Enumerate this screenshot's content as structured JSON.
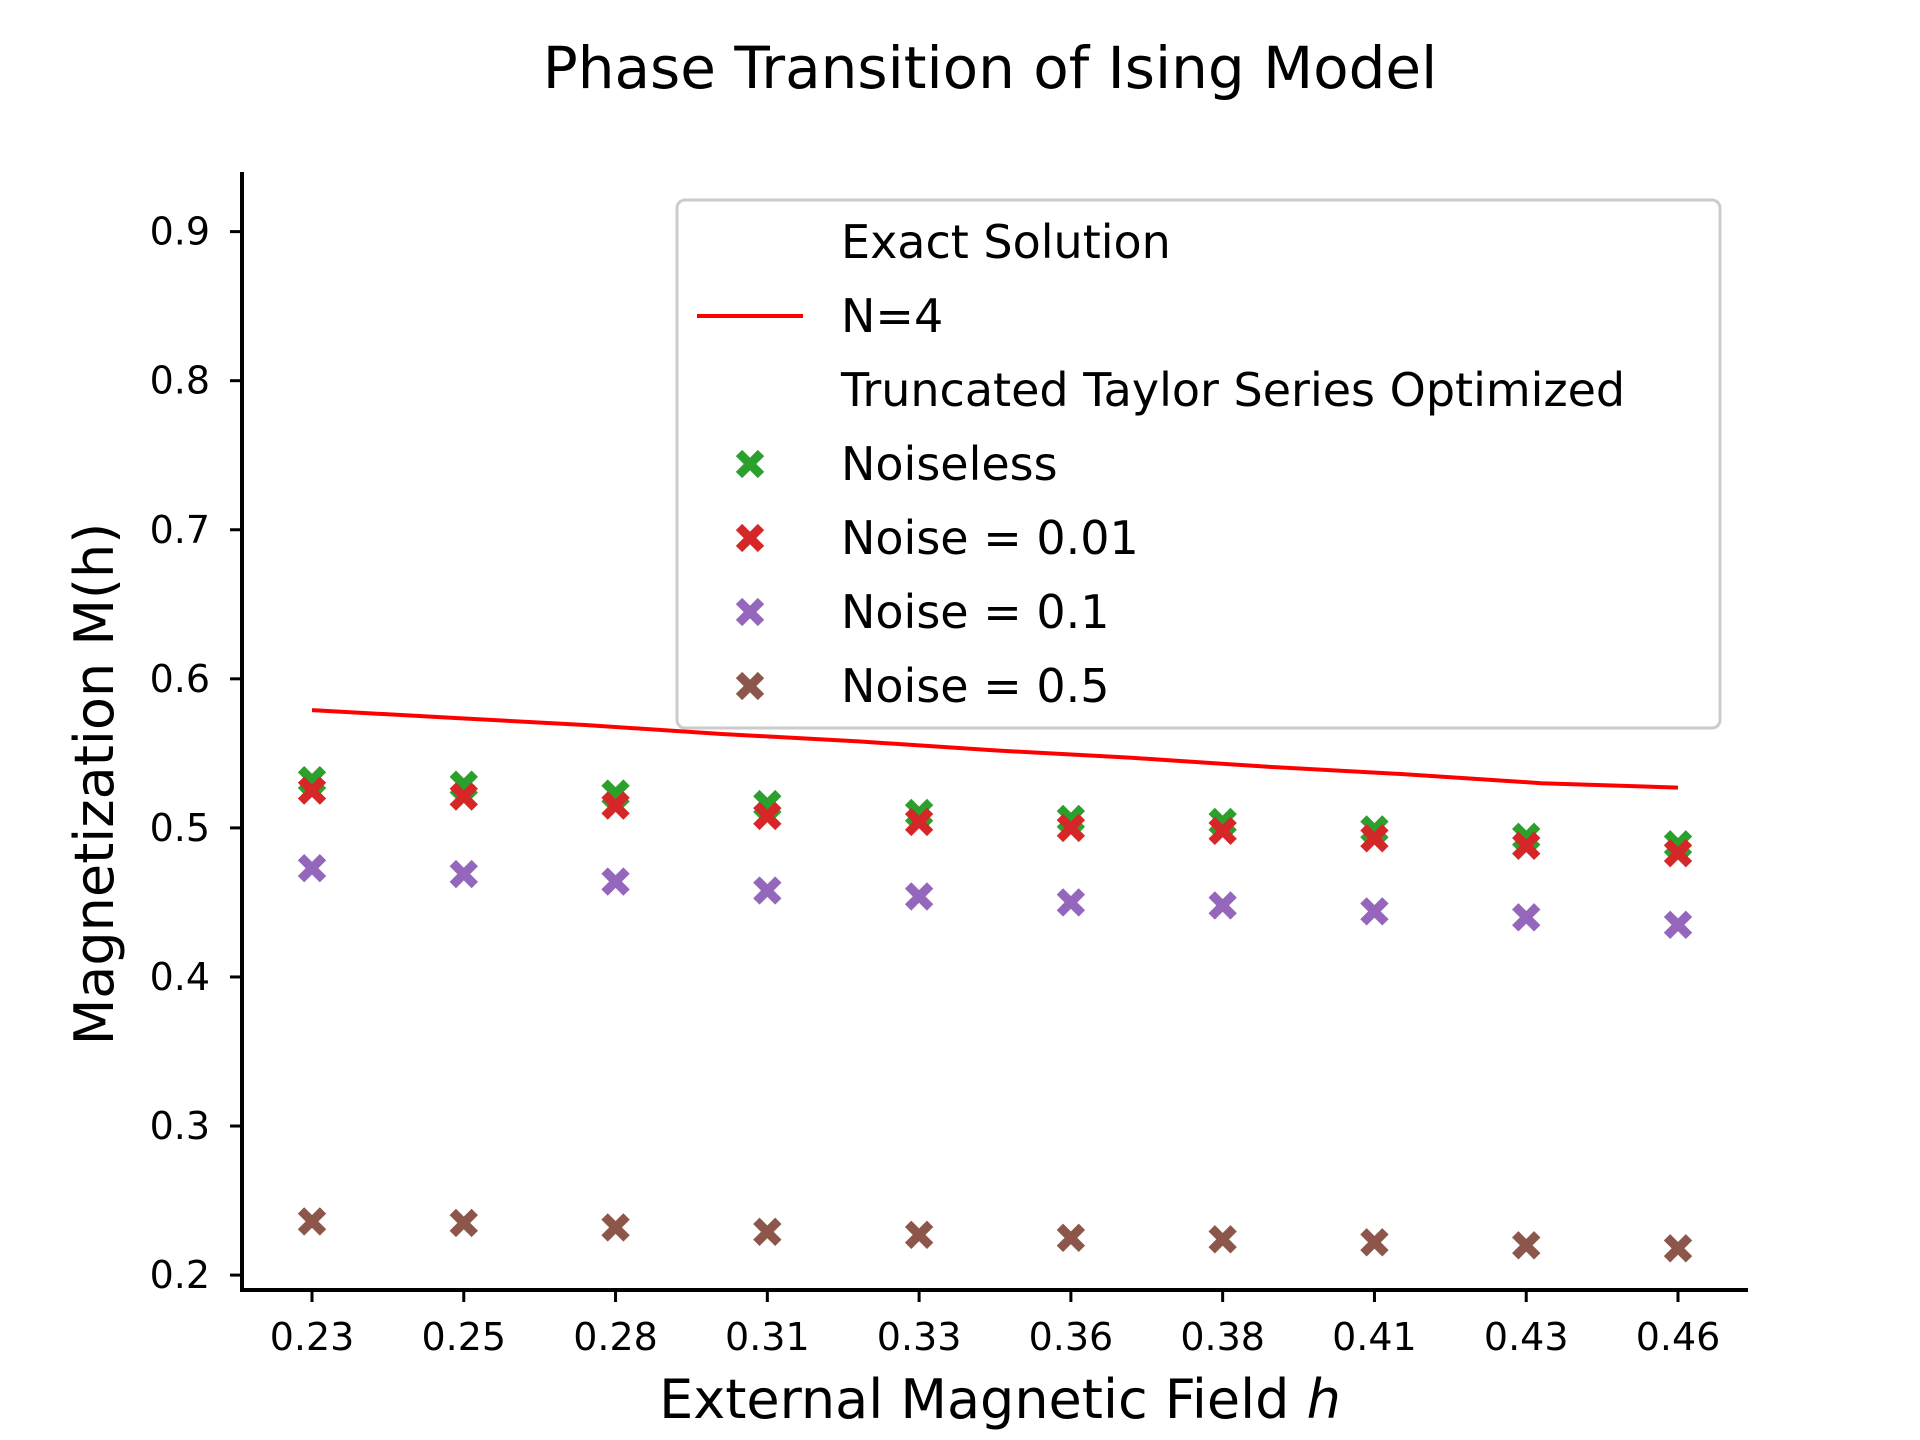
{
  "chart_data": {
    "type": "scatter",
    "title": "Phase Transition of Ising Model",
    "xlabel": "External Magnetic Field",
    "xlabel_var": "h",
    "ylabel": "Magnetization M(h)",
    "x": [
      0.23,
      0.25,
      0.28,
      0.31,
      0.33,
      0.36,
      0.38,
      0.41,
      0.43,
      0.46
    ],
    "x_tick_labels": [
      "0.23",
      "0.25",
      "0.28",
      "0.31",
      "0.33",
      "0.36",
      "0.38",
      "0.41",
      "0.43",
      "0.46"
    ],
    "y_ticks": [
      0.2,
      0.3,
      0.4,
      0.5,
      0.6,
      0.7,
      0.8,
      0.9
    ],
    "y_tick_labels": [
      "0.2",
      "0.3",
      "0.4",
      "0.5",
      "0.6",
      "0.7",
      "0.8",
      "0.9"
    ],
    "ylim": [
      0.19,
      0.94
    ],
    "grid": false,
    "legend_position": "top-right",
    "legend_groups": [
      {
        "header": "Exact Solution"
      },
      {
        "header": "Truncated Taylor Series Optimized"
      }
    ],
    "line_series": [
      {
        "name": "N=4",
        "color": "#ff0000",
        "y": [
          0.579,
          0.574,
          0.569,
          0.563,
          0.558,
          0.552,
          0.547,
          0.541,
          0.536,
          0.53,
          0.527
        ]
      }
    ],
    "series": [
      {
        "name": "Noiseless",
        "color": "#2ca02c",
        "marker": "x",
        "values": [
          0.532,
          0.529,
          0.523,
          0.516,
          0.51,
          0.506,
          0.504,
          0.499,
          0.494,
          0.489
        ]
      },
      {
        "name": "Noise = 0.01",
        "color": "#d62728",
        "marker": "x",
        "values": [
          0.525,
          0.521,
          0.515,
          0.508,
          0.504,
          0.5,
          0.498,
          0.493,
          0.488,
          0.483
        ]
      },
      {
        "name": "Noise = 0.1",
        "color": "#9467bd",
        "marker": "x",
        "values": [
          0.473,
          0.469,
          0.464,
          0.458,
          0.454,
          0.45,
          0.448,
          0.444,
          0.44,
          0.435
        ]
      },
      {
        "name": "Noise = 0.5",
        "color": "#8c564b",
        "marker": "x",
        "values": [
          0.236,
          0.235,
          0.232,
          0.229,
          0.227,
          0.225,
          0.224,
          0.222,
          0.22,
          0.218
        ]
      }
    ]
  }
}
